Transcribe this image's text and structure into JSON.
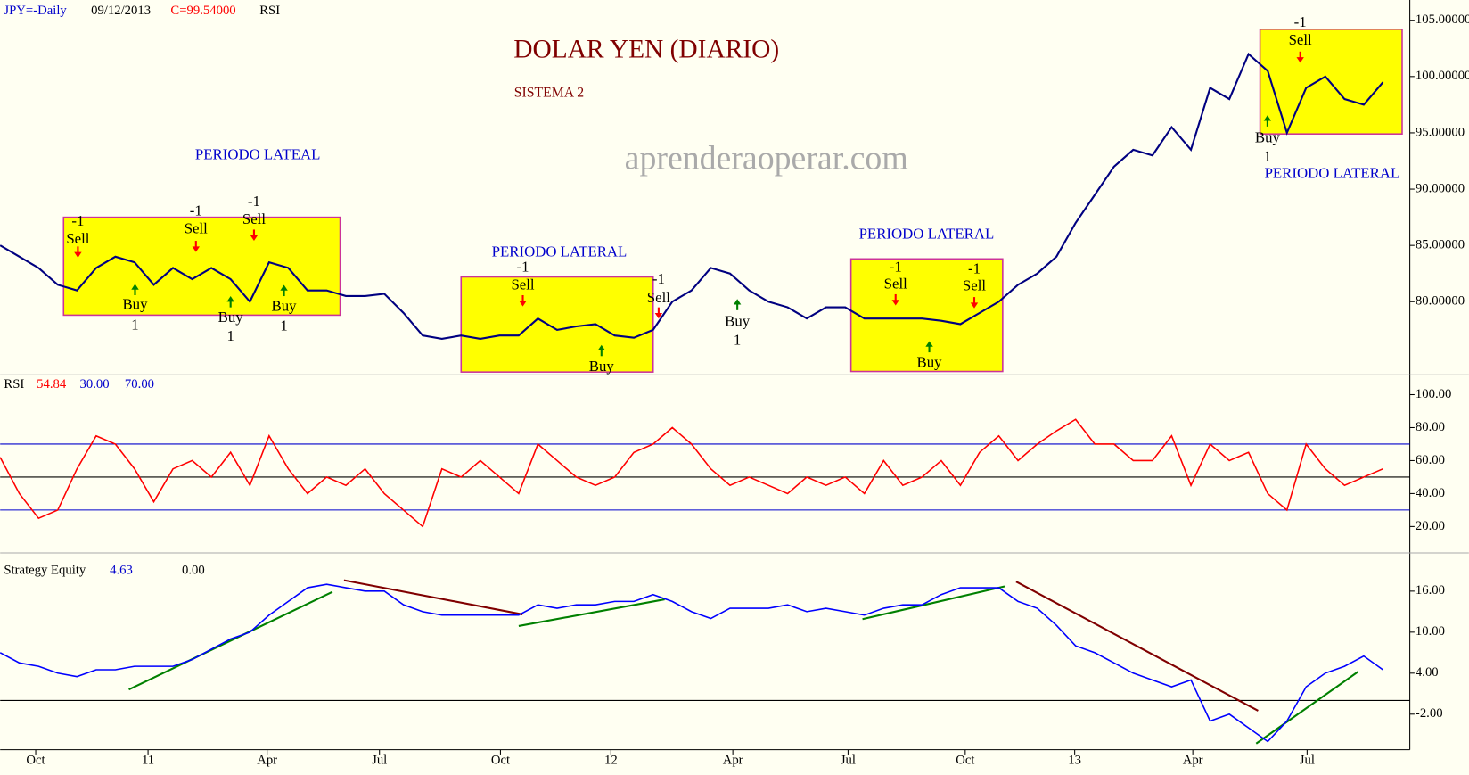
{
  "chart_data": [
    {
      "type": "line",
      "title": "DOLAR YEN (DIARIO)",
      "subtitle": "SISTEMA 2",
      "watermark": "aprenderaoperar.com",
      "date": "09/12/2013",
      "last_label": "C=99.54000",
      "indicator": "RSI",
      "series": [
        {
          "name": "JPY=-Daily",
          "color": "#000080",
          "values": [
            85,
            84,
            83,
            81.5,
            81,
            83,
            84,
            83.5,
            81.5,
            83,
            82,
            83,
            82,
            80,
            83.5,
            83,
            81,
            81,
            80.5,
            80.5,
            80.7,
            79,
            77,
            76.7,
            77,
            76.7,
            77,
            77,
            78.5,
            77.5,
            77.8,
            78,
            77,
            76.8,
            77.5,
            80,
            81,
            83,
            82.5,
            81,
            80,
            79.5,
            78.5,
            79.5,
            79.5,
            78.5,
            78.5,
            78.5,
            78.5,
            78.3,
            78,
            79,
            80,
            81.5,
            82.5,
            84,
            87,
            89.5,
            92,
            93.5,
            93,
            95.5,
            93.5,
            99,
            98,
            102,
            100.5,
            95,
            99,
            100,
            98,
            97.5,
            99.5
          ]
        }
      ],
      "xlim": [
        0,
        73.4
      ],
      "ylim": [
        73.5,
        106.8
      ],
      "yticks": [
        {
          "value": 80,
          "label": "80.00000"
        },
        {
          "value": 85,
          "label": "85.00000"
        },
        {
          "value": 90,
          "label": "90.00000"
        },
        {
          "value": 95,
          "label": "95.00000"
        },
        {
          "value": 100,
          "label": "100.00000"
        },
        {
          "value": 105,
          "label": "105.00000"
        }
      ],
      "box_color": "#ffff00",
      "box_border": "#cc3399",
      "boxes": [
        {
          "x": [
            3.3,
            17.7
          ],
          "y": [
            78.8,
            87.5
          ]
        },
        {
          "x": [
            24,
            34
          ],
          "y": [
            73.75,
            82.2
          ]
        },
        {
          "x": [
            44.3,
            52.2
          ],
          "y": [
            73.8,
            83.8
          ]
        },
        {
          "x": [
            65.6,
            73
          ],
          "y": [
            94.9,
            104.2
          ]
        }
      ],
      "annotations": [
        "PERIODO LATEAL",
        "PERIODO LATERAL",
        "PERIODO LATERAL",
        "PERIODO LATERAL"
      ],
      "signals": [
        {
          "text": "Sell",
          "qty": -1
        },
        {
          "text": "Buy",
          "qty": 1
        },
        {
          "text": "Sell",
          "qty": -1
        },
        {
          "text": "Sell",
          "qty": -1
        },
        {
          "text": "Buy",
          "qty": 1
        },
        {
          "text": "Buy",
          "qty": 1
        },
        {
          "text": "Sell",
          "qty": -1
        },
        {
          "text": "Buy"
        },
        {
          "text": "Sell",
          "qty": -1
        },
        {
          "text": "Buy",
          "qty": 1
        },
        {
          "text": "Sell",
          "qty": -1
        },
        {
          "text": "Buy"
        },
        {
          "text": "Sell",
          "qty": -1
        },
        {
          "text": "Sell",
          "qty": -1
        },
        {
          "text": "Buy",
          "qty": 1
        }
      ]
    },
    {
      "type": "line",
      "series": [
        {
          "name": "RSI",
          "color": "#ff0000",
          "values": [
            62,
            40,
            25,
            30,
            55,
            75,
            70,
            55,
            35,
            55,
            60,
            50,
            65,
            45,
            75,
            55,
            40,
            50,
            45,
            55,
            40,
            30,
            20,
            55,
            50,
            60,
            50,
            40,
            70,
            60,
            50,
            45,
            50,
            65,
            70,
            80,
            70,
            55,
            45,
            50,
            45,
            40,
            50,
            45,
            50,
            40,
            60,
            45,
            50,
            60,
            45,
            65,
            75,
            60,
            70,
            78,
            85,
            70,
            70,
            60,
            60,
            75,
            45,
            70,
            60,
            65,
            40,
            30,
            70,
            55,
            45,
            50,
            55
          ]
        }
      ],
      "last": 54.84,
      "levels": [
        {
          "value": 30,
          "label": "30.00"
        },
        {
          "value": 70,
          "label": "70.00"
        }
      ],
      "level_color": "#0000cc",
      "center": 50,
      "xlim": [
        0,
        73.4
      ],
      "ylim": [
        4,
        112
      ],
      "yticks": [
        {
          "value": 20,
          "label": "20.00"
        },
        {
          "value": 40,
          "label": "40.00"
        },
        {
          "value": 60,
          "label": "60.00"
        },
        {
          "value": 80,
          "label": "80.00"
        },
        {
          "value": 100,
          "label": "100.00"
        }
      ]
    },
    {
      "type": "line",
      "series": [
        {
          "name": "Strategy Equity",
          "color": "#0000ff",
          "values": [
            7,
            5.5,
            5,
            4,
            3.5,
            4.5,
            4.5,
            5,
            5,
            5,
            6,
            7.5,
            9,
            10,
            12.5,
            14.5,
            16.5,
            17,
            16.5,
            16,
            16,
            14,
            13,
            12.5,
            12.5,
            12.5,
            12.5,
            12.5,
            14,
            13.5,
            14,
            14,
            14.5,
            14.5,
            15.5,
            14.5,
            13,
            12,
            13.5,
            13.5,
            13.5,
            14,
            13,
            13.5,
            13,
            12.5,
            13.5,
            14,
            14,
            15.5,
            16.5,
            16.5,
            16.5,
            14.5,
            13.5,
            11,
            8,
            7,
            5.5,
            4,
            3,
            2,
            3,
            -3,
            -2,
            -4,
            -6,
            -3,
            2,
            4,
            5,
            6.5,
            4.5
          ]
        }
      ],
      "last": 4.63,
      "baseline": {
        "value": 0,
        "label": "0.00"
      },
      "trend_lines": [
        {
          "color": "#008000",
          "from": [
            6.7,
            1.6
          ],
          "to": [
            17.3,
            15.9
          ]
        },
        {
          "color": "#800000",
          "from": [
            17.9,
            17.6
          ],
          "to": [
            27.2,
            12.6
          ]
        },
        {
          "color": "#008000",
          "from": [
            27,
            10.9
          ],
          "to": [
            34.6,
            14.8
          ]
        },
        {
          "color": "#008000",
          "from": [
            44.9,
            11.9
          ],
          "to": [
            52.3,
            16.7
          ]
        },
        {
          "color": "#800000",
          "from": [
            52.9,
            17.4
          ],
          "to": [
            65.5,
            -1.5
          ]
        },
        {
          "color": "#008000",
          "from": [
            65.4,
            -6.3
          ],
          "to": [
            70.7,
            4.2
          ]
        }
      ],
      "xlim": [
        0,
        73.4
      ],
      "ylim": [
        -7.2,
        21.6
      ],
      "yticks": [
        {
          "value": -2,
          "label": "-2.00"
        },
        {
          "value": 4,
          "label": "4.00"
        },
        {
          "value": 10,
          "label": "10.00"
        },
        {
          "value": 16,
          "label": "16.00"
        }
      ],
      "xticks": [
        {
          "value": 1.85,
          "label": "Oct"
        },
        {
          "value": 7.7,
          "label": "11"
        },
        {
          "value": 13.9,
          "label": "Apr"
        },
        {
          "value": 19.75,
          "label": "Jul"
        },
        {
          "value": 26.05,
          "label": "Oct"
        },
        {
          "value": 31.8,
          "label": "12"
        },
        {
          "value": 38.15,
          "label": "Apr"
        },
        {
          "value": 44.15,
          "label": "Jul"
        },
        {
          "value": 50.25,
          "label": "Oct"
        },
        {
          "value": 55.95,
          "label": "13"
        },
        {
          "value": 62.1,
          "label": "Apr"
        },
        {
          "value": 68.05,
          "label": "Jul"
        }
      ]
    }
  ]
}
